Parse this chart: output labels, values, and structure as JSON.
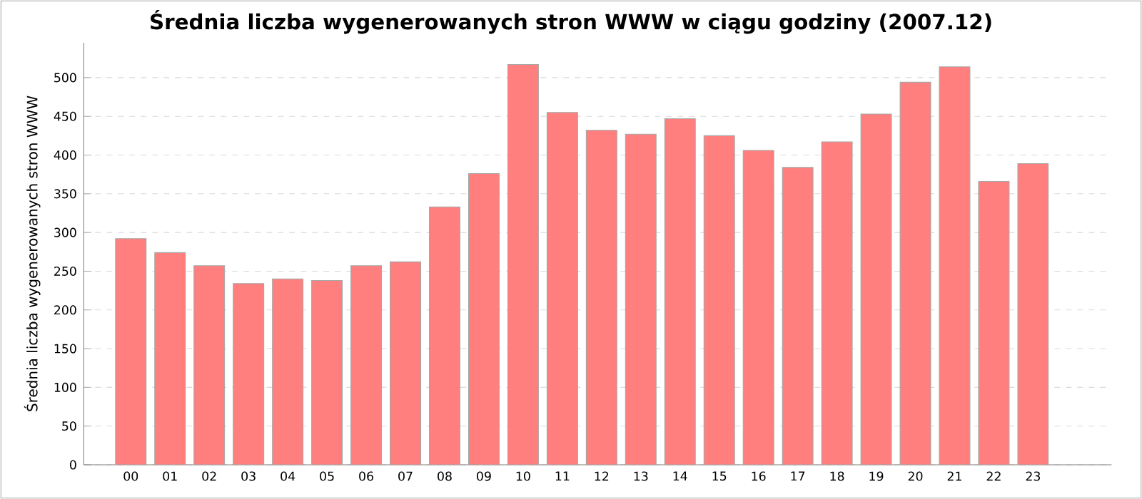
{
  "chart_data": {
    "type": "bar",
    "title": "Średnia liczba wygenerowanych stron WWW w ciągu godziny (2007.12)",
    "ylabel": "Średnia liczba wygenerowanych stron WWW",
    "categories": [
      "00",
      "01",
      "02",
      "03",
      "04",
      "05",
      "06",
      "07",
      "08",
      "09",
      "10",
      "11",
      "12",
      "13",
      "14",
      "15",
      "16",
      "17",
      "18",
      "19",
      "20",
      "21",
      "22",
      "23"
    ],
    "values": [
      292,
      274,
      257,
      234,
      240,
      238,
      257,
      262,
      333,
      376,
      517,
      455,
      432,
      427,
      447,
      425,
      406,
      384,
      417,
      453,
      494,
      514,
      366,
      389
    ],
    "color": "#ff7f7f",
    "ylim": [
      0,
      545
    ],
    "yticks": [
      0,
      50,
      100,
      150,
      200,
      250,
      300,
      350,
      400,
      450,
      500
    ],
    "grid": "y"
  }
}
